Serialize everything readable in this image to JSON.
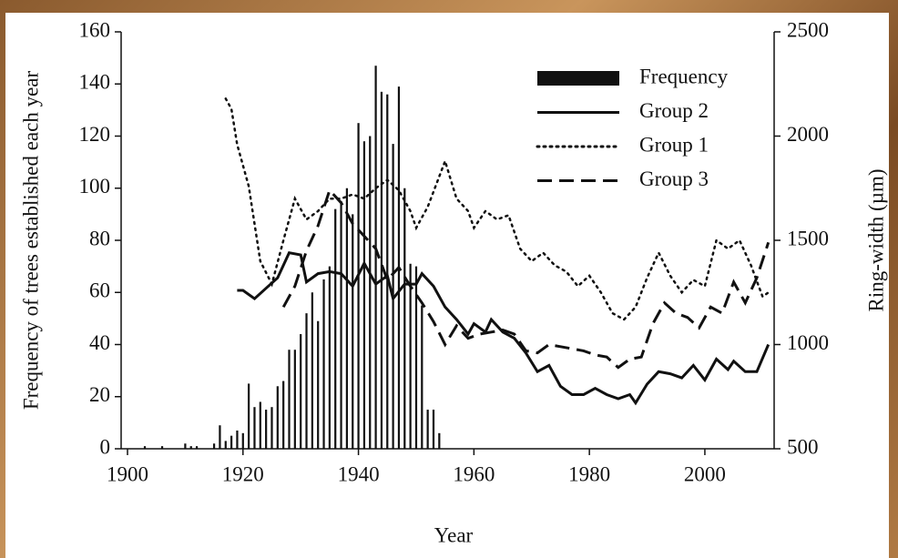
{
  "chart_data": {
    "type": "combo",
    "xlabel": "Year",
    "ylabel": "Frequency of trees established each year",
    "y2label": "Ring-width (µm)",
    "xlim": [
      1900,
      2012
    ],
    "xticks": [
      1900,
      1920,
      1940,
      1960,
      1980,
      2000
    ],
    "ylim": [
      0,
      160
    ],
    "yticks": [
      0,
      20,
      40,
      60,
      80,
      100,
      120,
      140,
      160
    ],
    "y2lim": [
      500,
      2500
    ],
    "y2ticks": [
      500,
      1000,
      1500,
      2000,
      2500
    ],
    "legend": "upper-right",
    "series": [
      {
        "name": "Frequency",
        "type": "bar",
        "color": "#111111",
        "x": [
          1903,
          1906,
          1910,
          1911,
          1912,
          1915,
          1916,
          1917,
          1918,
          1919,
          1920,
          1921,
          1922,
          1923,
          1924,
          1925,
          1926,
          1927,
          1928,
          1929,
          1930,
          1931,
          1932,
          1933,
          1934,
          1935,
          1936,
          1937,
          1938,
          1939,
          1940,
          1941,
          1942,
          1943,
          1944,
          1945,
          1946,
          1947,
          1948,
          1949,
          1950,
          1951,
          1952,
          1953,
          1954
        ],
        "values": [
          1,
          1,
          2,
          1,
          1,
          2,
          9,
          3,
          5,
          7,
          6,
          25,
          16,
          18,
          15,
          16,
          24,
          26,
          38,
          38,
          44,
          52,
          60,
          49,
          65,
          70,
          92,
          95,
          100,
          90,
          125,
          118,
          120,
          147,
          137,
          136,
          117,
          139,
          100,
          71,
          70,
          55,
          15,
          15,
          6
        ]
      },
      {
        "name": "Group 2",
        "type": "line",
        "dash": "solid",
        "axis": "y2",
        "color": "#111111",
        "x": [
          1919,
          1920,
          1922,
          1924,
          1926,
          1928,
          1930,
          1931,
          1933,
          1935,
          1937,
          1939,
          1941,
          1943,
          1945,
          1946,
          1948,
          1950,
          1951,
          1953,
          1955,
          1957,
          1959,
          1960,
          1962,
          1963,
          1965,
          1967,
          1969,
          1971,
          1973,
          1975,
          1977,
          1979,
          1981,
          1983,
          1985,
          1987,
          1988,
          1990,
          1992,
          1994,
          1996,
          1998,
          2000,
          2002,
          2004,
          2005,
          2007,
          2009,
          2011
        ],
        "values": [
          1260,
          1260,
          1220,
          1270,
          1320,
          1440,
          1430,
          1300,
          1340,
          1350,
          1340,
          1280,
          1390,
          1290,
          1330,
          1220,
          1290,
          1290,
          1340,
          1280,
          1180,
          1120,
          1050,
          1100,
          1060,
          1120,
          1060,
          1030,
          960,
          870,
          900,
          800,
          760,
          760,
          790,
          760,
          740,
          760,
          720,
          810,
          870,
          860,
          840,
          900,
          830,
          930,
          880,
          920,
          870,
          870,
          1000
        ]
      },
      {
        "name": "Group 1",
        "type": "line",
        "dash": "dotted",
        "axis": "y2",
        "color": "#111111",
        "x": [
          1917,
          1918,
          1919,
          1921,
          1923,
          1925,
          1927,
          1929,
          1931,
          1933,
          1935,
          1937,
          1939,
          1941,
          1943,
          1945,
          1947,
          1949,
          1950,
          1952,
          1955,
          1957,
          1959,
          1960,
          1962,
          1964,
          1966,
          1968,
          1970,
          1972,
          1974,
          1976,
          1978,
          1980,
          1982,
          1984,
          1986,
          1988,
          1990,
          1992,
          1994,
          1996,
          1998,
          2000,
          2002,
          2004,
          2006,
          2008,
          2010,
          2011
        ],
        "values": [
          2180,
          2130,
          1960,
          1760,
          1400,
          1290,
          1500,
          1700,
          1600,
          1640,
          1700,
          1700,
          1720,
          1700,
          1750,
          1790,
          1740,
          1640,
          1560,
          1660,
          1880,
          1700,
          1640,
          1560,
          1640,
          1600,
          1620,
          1460,
          1400,
          1440,
          1380,
          1350,
          1280,
          1330,
          1250,
          1150,
          1120,
          1180,
          1320,
          1440,
          1330,
          1250,
          1310,
          1280,
          1500,
          1460,
          1500,
          1380,
          1230,
          1250
        ]
      },
      {
        "name": "Group 3",
        "type": "line",
        "dash": "dashed",
        "axis": "y2",
        "color": "#111111",
        "x": [
          1927,
          1929,
          1931,
          1933,
          1935,
          1937,
          1939,
          1941,
          1943,
          1945,
          1947,
          1949,
          1951,
          1953,
          1955,
          1957,
          1959,
          1961,
          1963,
          1965,
          1967,
          1969,
          1971,
          1973,
          1975,
          1977,
          1979,
          1981,
          1983,
          1985,
          1987,
          1989,
          1991,
          1993,
          1995,
          1997,
          1999,
          2001,
          2003,
          2005,
          2007,
          2009,
          2011
        ],
        "values": [
          1180,
          1280,
          1450,
          1570,
          1740,
          1680,
          1580,
          1520,
          1460,
          1310,
          1370,
          1280,
          1200,
          1110,
          1000,
          1090,
          1030,
          1050,
          1060,
          1070,
          1050,
          970,
          960,
          1000,
          990,
          980,
          970,
          950,
          940,
          890,
          930,
          940,
          1100,
          1200,
          1150,
          1130,
          1080,
          1180,
          1150,
          1300,
          1200,
          1320,
          1490
        ]
      }
    ]
  }
}
